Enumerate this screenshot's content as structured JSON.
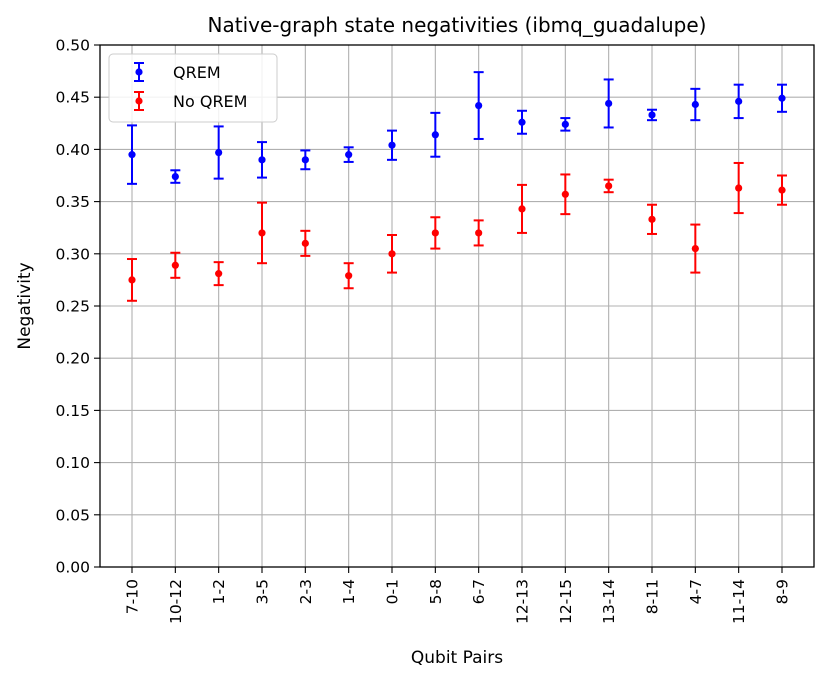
{
  "chart_data": {
    "type": "scatter",
    "title": "Native-graph state negativities (ibmq_guadalupe)",
    "xlabel": "Qubit Pairs",
    "ylabel": "Negativity",
    "categories": [
      "7-10",
      "10-12",
      "1-2",
      "3-5",
      "2-3",
      "1-4",
      "0-1",
      "5-8",
      "6-7",
      "12-13",
      "12-15",
      "13-14",
      "8-11",
      "4-7",
      "11-14",
      "8-9"
    ],
    "ylim": [
      0,
      0.5
    ],
    "yticks": [
      "0.00",
      "0.05",
      "0.10",
      "0.15",
      "0.20",
      "0.25",
      "0.30",
      "0.35",
      "0.40",
      "0.45",
      "0.50"
    ],
    "grid": true,
    "legend_position": "top-left",
    "series": [
      {
        "name": "QREM",
        "color": "#0000ff",
        "values": [
          0.395,
          0.374,
          0.397,
          0.39,
          0.39,
          0.395,
          0.404,
          0.414,
          0.442,
          0.426,
          0.424,
          0.444,
          0.433,
          0.443,
          0.446,
          0.449
        ],
        "errors": [
          0.028,
          0.006,
          0.025,
          0.017,
          0.009,
          0.007,
          0.014,
          0.021,
          0.032,
          0.011,
          0.006,
          0.023,
          0.005,
          0.015,
          0.016,
          0.013
        ]
      },
      {
        "name": "No QREM",
        "color": "#ff0000",
        "values": [
          0.275,
          0.289,
          0.281,
          0.32,
          0.31,
          0.279,
          0.3,
          0.32,
          0.32,
          0.343,
          0.357,
          0.365,
          0.333,
          0.305,
          0.363,
          0.361
        ],
        "errors": [
          0.02,
          0.012,
          0.011,
          0.029,
          0.012,
          0.012,
          0.018,
          0.015,
          0.012,
          0.023,
          0.019,
          0.006,
          0.014,
          0.023,
          0.024,
          0.014
        ]
      }
    ]
  }
}
